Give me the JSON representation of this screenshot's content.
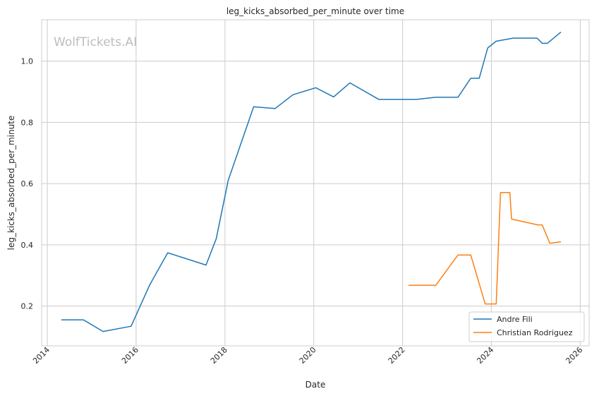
{
  "chart_data": {
    "type": "line",
    "title": "leg_kicks_absorbed_per_minute over time",
    "xlabel": "Date",
    "ylabel": "leg_kicks_absorbed_per_minute",
    "watermark": "WolfTickets.AI",
    "x_ticks": [
      "2014",
      "2016",
      "2018",
      "2020",
      "2022",
      "2024",
      "2026"
    ],
    "y_ticks": [
      "0.2",
      "0.4",
      "0.6",
      "0.8",
      "1.0"
    ],
    "xlim": [
      "2013-11-15",
      "2026-03-15"
    ],
    "ylim": [
      0.07,
      1.135
    ],
    "grid": true,
    "legend_position": "lower right",
    "series": [
      {
        "name": "Andre Fili",
        "color": "#1f77b4",
        "points": [
          [
            "2014-04-26",
            0.155
          ],
          [
            "2014-10-25",
            0.155
          ],
          [
            "2015-04-04",
            0.117
          ],
          [
            "2015-11-21",
            0.134
          ],
          [
            "2016-04-23",
            0.27
          ],
          [
            "2016-09-17",
            0.374
          ],
          [
            "2017-07-29",
            0.334
          ],
          [
            "2017-10-21",
            0.42
          ],
          [
            "2018-01-27",
            0.61
          ],
          [
            "2018-08-25",
            0.851
          ],
          [
            "2019-02-17",
            0.845
          ],
          [
            "2019-07-13",
            0.89
          ],
          [
            "2020-01-18",
            0.913
          ],
          [
            "2020-06-13",
            0.883
          ],
          [
            "2020-10-24",
            0.929
          ],
          [
            "2021-06-19",
            0.875
          ],
          [
            "2022-04-30",
            0.875
          ],
          [
            "2022-10-01",
            0.882
          ],
          [
            "2023-04-01",
            0.882
          ],
          [
            "2023-07-15",
            0.944
          ],
          [
            "2023-09-23",
            0.944
          ],
          [
            "2023-12-02",
            1.043
          ],
          [
            "2024-02-10",
            1.065
          ],
          [
            "2024-06-29",
            1.075
          ],
          [
            "2025-01-11",
            1.075
          ],
          [
            "2025-02-22",
            1.058
          ],
          [
            "2025-04-05",
            1.058
          ],
          [
            "2025-07-26",
            1.095
          ]
        ]
      },
      {
        "name": "Christian Rodriguez",
        "color": "#ff7f0e",
        "points": [
          [
            "2022-02-19",
            0.268
          ],
          [
            "2022-10-01",
            0.268
          ],
          [
            "2023-04-01",
            0.367
          ],
          [
            "2023-07-15",
            0.367
          ],
          [
            "2023-11-11",
            0.207
          ],
          [
            "2024-02-10",
            0.207
          ],
          [
            "2024-03-16",
            0.571
          ],
          [
            "2024-06-01",
            0.571
          ],
          [
            "2024-06-15",
            0.484
          ],
          [
            "2025-01-18",
            0.465
          ],
          [
            "2025-02-22",
            0.465
          ],
          [
            "2025-04-26",
            0.405
          ],
          [
            "2025-07-26",
            0.41
          ]
        ]
      }
    ]
  }
}
